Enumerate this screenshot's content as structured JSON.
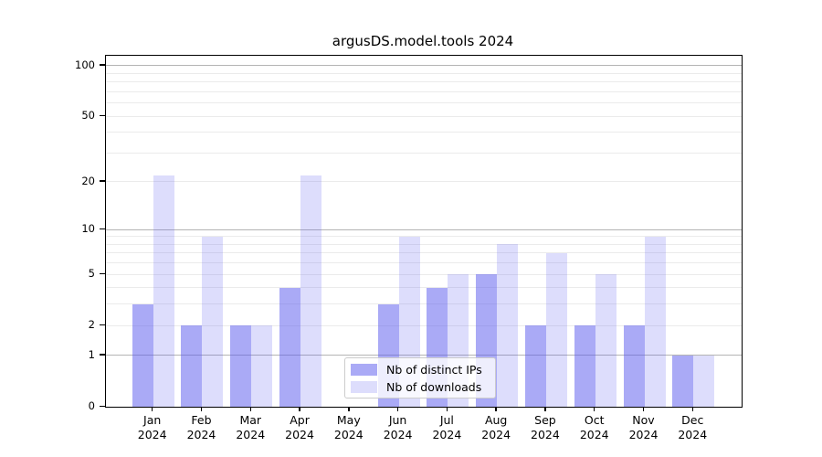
{
  "chart_data": {
    "type": "bar",
    "title": "argusDS.model.tools 2024",
    "categories": [
      "Jan",
      "Feb",
      "Mar",
      "Apr",
      "May",
      "Jun",
      "Jul",
      "Aug",
      "Sep",
      "Oct",
      "Nov",
      "Dec"
    ],
    "category_year": "2024",
    "series": [
      {
        "name": "Nb of distinct IPs",
        "color": "rgba(85,85,238,0.5)",
        "values": [
          3,
          2,
          2,
          4,
          0,
          3,
          4,
          5,
          2,
          2,
          2,
          1
        ]
      },
      {
        "name": "Nb of downloads",
        "color": "rgba(85,85,238,0.2)",
        "values": [
          22,
          9,
          2,
          22,
          0,
          9,
          5,
          8,
          7,
          5,
          9,
          1
        ]
      }
    ],
    "xlabel": "",
    "ylabel": "",
    "yscale": "log10(1+x)",
    "ylim": [
      0,
      114.7
    ],
    "ytick_values": [
      0,
      1,
      2,
      5,
      10,
      20,
      50,
      100
    ],
    "ytick_labels": [
      "0",
      "1",
      "2",
      "5",
      "10",
      "20",
      "50",
      "100"
    ],
    "major_gridline_values": [
      1,
      10,
      100
    ],
    "minor_gridline_values": [
      2,
      3,
      4,
      5,
      6,
      7,
      8,
      9,
      20,
      30,
      40,
      50,
      60,
      70,
      80,
      90
    ],
    "grid": "on",
    "legend_position": "lower center"
  },
  "colors": {
    "background": "#ffffff",
    "spine": "#000000",
    "text": "#000000",
    "major_grid": "#b4b4b4",
    "minor_grid": "#ebebeb",
    "legend_border": "#cccccc",
    "legend_background": "rgba(255,255,255,0.8)"
  }
}
